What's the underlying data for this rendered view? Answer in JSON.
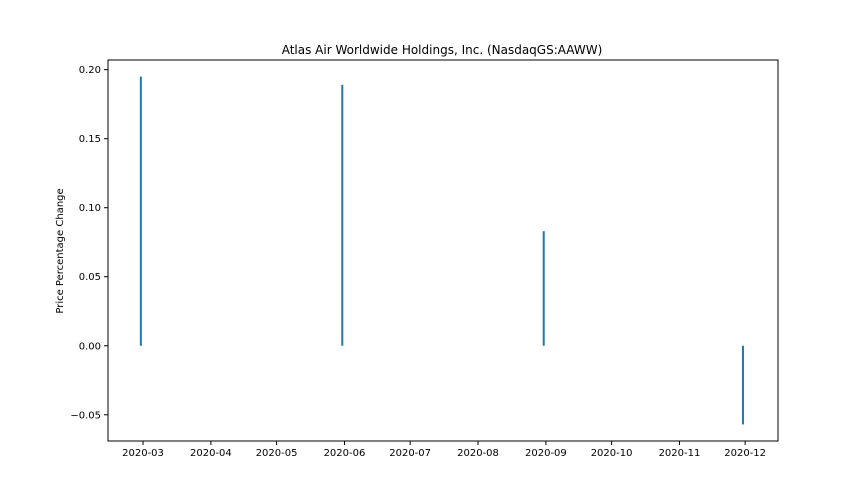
{
  "chart_data": {
    "type": "bar",
    "title": "Atlas Air Worldwide Holdings, Inc. (NasdaqGS:AAWW)",
    "xlabel": "",
    "ylabel": "Price Percentage Change",
    "x_ticks": [
      "2020-03",
      "2020-04",
      "2020-05",
      "2020-06",
      "2020-07",
      "2020-08",
      "2020-09",
      "2020-10",
      "2020-11",
      "2020-12"
    ],
    "y_ticks": [
      "0.20",
      "0.15",
      "0.10",
      "0.05",
      "0.00",
      "−0.05"
    ],
    "y_tick_values": [
      0.2,
      0.15,
      0.1,
      0.05,
      0.0,
      -0.05
    ],
    "ylim": [
      -0.069,
      0.207
    ],
    "xlim": [
      "2020-02-14",
      "2020-12-16"
    ],
    "grid": false,
    "bar_color": "#1f77b4",
    "series": [
      {
        "name": "Price Percentage Change",
        "points": [
          {
            "date": "2020-02-29",
            "value": 0.195
          },
          {
            "date": "2020-05-31",
            "value": 0.189
          },
          {
            "date": "2020-08-31",
            "value": 0.083
          },
          {
            "date": "2020-11-30",
            "value": -0.057
          }
        ]
      }
    ]
  }
}
